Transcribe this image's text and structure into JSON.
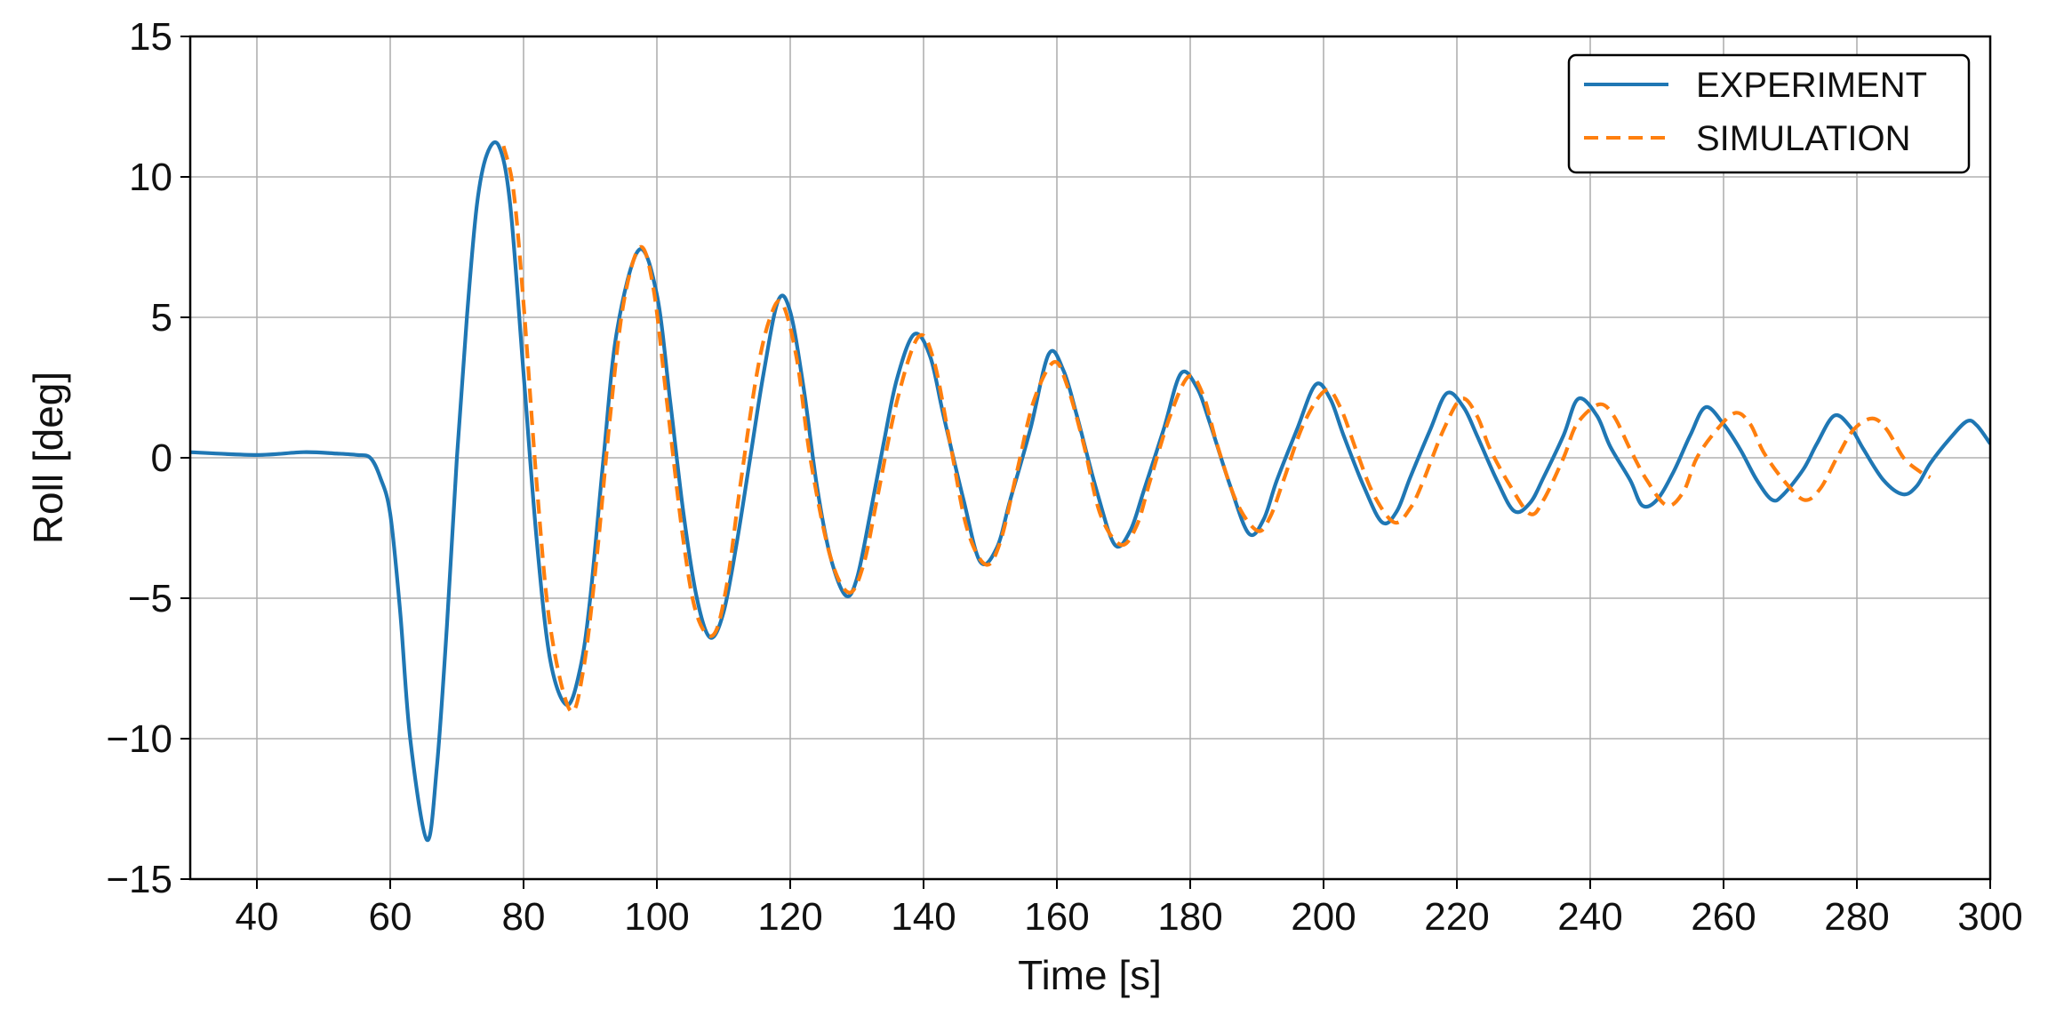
{
  "chart_data": {
    "type": "line",
    "title": "",
    "xlabel": "Time [s]",
    "ylabel": "Roll [deg]",
    "xlim": [
      30,
      300
    ],
    "ylim": [
      -15,
      15
    ],
    "xticks": [
      40,
      60,
      80,
      100,
      120,
      140,
      160,
      180,
      200,
      220,
      240,
      260,
      280,
      300
    ],
    "xtick_labels": [
      "40",
      "60",
      "80",
      "100",
      "120",
      "140",
      "160",
      "180",
      "200",
      "220",
      "240",
      "260",
      "280",
      "300"
    ],
    "yticks": [
      -15,
      -10,
      -5,
      0,
      5,
      10,
      15
    ],
    "ytick_labels": [
      "−15",
      "−10",
      "−5",
      "0",
      "5",
      "10",
      "15"
    ],
    "grid": true,
    "legend_position": "top-right",
    "series": [
      {
        "name": "EXPERIMENT",
        "color": "#1f77b4",
        "style": "solid",
        "x": [
          30,
          40,
          47,
          52,
          55,
          57,
          58.5,
          60,
          61.5,
          63,
          65.5,
          67,
          68.5,
          70,
          71.5,
          73,
          74.5,
          76.3,
          78,
          80,
          82,
          84,
          86.5,
          88.5,
          90,
          92,
          94,
          97.3,
          100,
          102,
          104,
          106,
          108,
          110,
          112,
          114,
          116,
          118.2,
          120,
          122,
          124,
          126,
          128.3,
          130,
          132,
          134,
          136,
          138.6,
          141,
          143,
          146,
          148.5,
          151,
          153,
          156,
          158.8,
          161,
          163,
          166,
          168.7,
          171,
          173,
          176,
          178.6,
          181,
          183,
          186,
          188.8,
          191,
          193,
          196,
          198.8,
          201,
          203,
          206,
          208.8,
          211,
          213,
          216,
          218.5,
          221,
          223,
          226,
          228.6,
          231,
          233,
          236,
          238.2,
          241,
          243,
          246,
          247.8,
          250,
          252.5,
          255,
          257.3,
          260,
          262.5,
          265,
          267.3,
          269,
          272,
          274,
          276.6,
          279,
          281,
          284,
          286.9,
          289,
          291,
          294,
          296.5,
          298,
          300
        ],
        "y": [
          0.2,
          0.1,
          0.2,
          0.15,
          0.1,
          0.0,
          -0.7,
          -2.0,
          -5.5,
          -10.0,
          -13.6,
          -11.0,
          -6.0,
          0.0,
          5.0,
          9.0,
          10.8,
          11.1,
          9.0,
          3.0,
          -3.0,
          -7.2,
          -8.8,
          -7.5,
          -5.0,
          0.0,
          4.5,
          7.4,
          5.8,
          2.0,
          -2.0,
          -5.0,
          -6.4,
          -5.5,
          -3.0,
          0.0,
          3.0,
          5.6,
          5.2,
          2.5,
          -1.0,
          -3.5,
          -4.9,
          -4.3,
          -2.0,
          0.5,
          2.8,
          4.4,
          3.6,
          1.5,
          -1.5,
          -3.7,
          -3.2,
          -1.5,
          1.0,
          3.7,
          3.1,
          1.5,
          -1.2,
          -3.1,
          -2.6,
          -1.2,
          1.0,
          3.0,
          2.5,
          1.2,
          -1.0,
          -2.7,
          -2.2,
          -0.8,
          1.0,
          2.6,
          2.1,
          0.8,
          -1.0,
          -2.3,
          -1.9,
          -0.7,
          1.0,
          2.3,
          1.8,
          0.8,
          -0.8,
          -1.9,
          -1.6,
          -0.7,
          0.8,
          2.1,
          1.5,
          0.4,
          -0.8,
          -1.7,
          -1.5,
          -0.5,
          0.8,
          1.8,
          1.2,
          0.3,
          -0.8,
          -1.5,
          -1.3,
          -0.4,
          0.5,
          1.5,
          1.1,
          0.3,
          -0.8,
          -1.3,
          -1.0,
          -0.2,
          0.7,
          1.3,
          1.15,
          0.5
        ]
      },
      {
        "name": "SIMULATION",
        "color": "#ff7f0e",
        "style": "dashed",
        "x": [
          77,
          78.5,
          80,
          82,
          84,
          87,
          89,
          91,
          93,
          95,
          97.5,
          99.5,
          101.5,
          104,
          106,
          108.5,
          110.5,
          112.5,
          115,
          117,
          118.8,
          121,
          123,
          126,
          128.8,
          131,
          133,
          136,
          139.2,
          141.5,
          144,
          146.5,
          149.3,
          151.5,
          154,
          156.5,
          159.5,
          161.5,
          164,
          166.5,
          169.6,
          172,
          174,
          177,
          179.8,
          182,
          184,
          187,
          190.1,
          192,
          194,
          197,
          200.3,
          202.5,
          205,
          207.5,
          210.6,
          213,
          215,
          218,
          220.7,
          223,
          225,
          228,
          231,
          233,
          236,
          238,
          241.3,
          243.5,
          246,
          248.5,
          251.5,
          254,
          256,
          259,
          261.8,
          264,
          266,
          269,
          272.1,
          274.5,
          277,
          279.5,
          282.3,
          284.5,
          287,
          289.5,
          291
        ],
        "y": [
          11.1,
          9.5,
          5.5,
          -1.0,
          -6.0,
          -9.0,
          -7.5,
          -3.5,
          1.5,
          5.5,
          7.5,
          6.0,
          2.0,
          -3.0,
          -5.6,
          -6.3,
          -4.5,
          -1.0,
          3.0,
          5.0,
          5.5,
          3.5,
          0.0,
          -3.5,
          -4.8,
          -3.8,
          -1.5,
          2.0,
          4.3,
          3.5,
          0.5,
          -2.5,
          -3.8,
          -3.0,
          -0.5,
          2.0,
          3.4,
          2.6,
          0.5,
          -2.0,
          -3.1,
          -2.4,
          -0.8,
          1.5,
          2.9,
          2.2,
          0.5,
          -1.6,
          -2.6,
          -2.1,
          -0.8,
          1.2,
          2.4,
          1.8,
          0.2,
          -1.3,
          -2.3,
          -1.8,
          -0.8,
          1.0,
          2.1,
          1.5,
          0.3,
          -1.0,
          -2.0,
          -1.5,
          0.0,
          1.2,
          1.9,
          1.5,
          0.3,
          -0.8,
          -1.7,
          -1.2,
          0.0,
          1.0,
          1.6,
          1.2,
          0.2,
          -0.8,
          -1.5,
          -1.1,
          0.0,
          1.0,
          1.4,
          1.0,
          0.0,
          -0.5,
          -0.7
        ]
      }
    ]
  }
}
